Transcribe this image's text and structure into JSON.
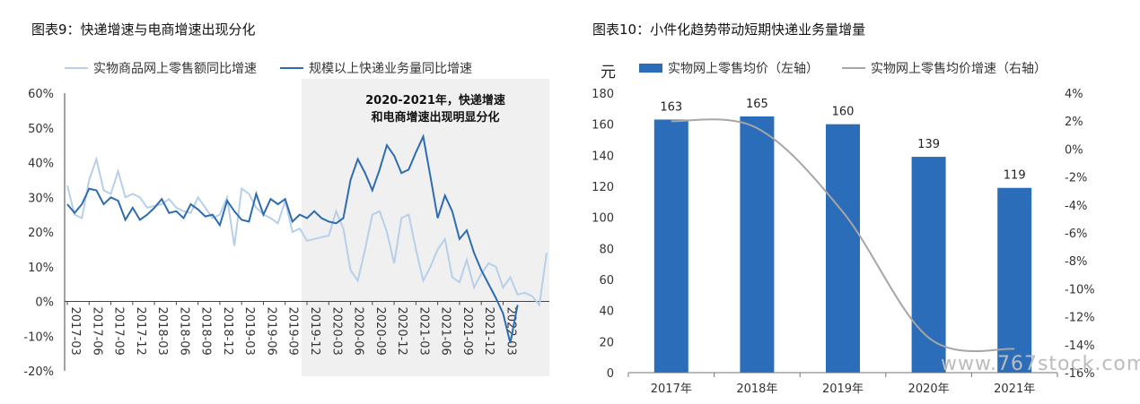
{
  "left_panel": {
    "title": "图表9：快递增速与电商增速出现分化",
    "legend": [
      "实物商品网上零售额同比增速",
      "规模以上快递业务量同比增速"
    ],
    "annotation_lines": [
      "2020-2021年，快递增速",
      "和电商增速出现明显分化"
    ],
    "colors": {
      "ecommerce": "#b7cfe9",
      "express": "#2e6cb0",
      "shade": "#f0f0f0"
    }
  },
  "right_panel": {
    "title": "图表10：小件化趋势带动短期快递业务量增量",
    "legend": [
      "实物网上零售均价（左轴）",
      "实物网上零售均价增速（右轴）"
    ],
    "unit": "元",
    "colors": {
      "bar": "#2b6db8",
      "line": "#a6a6a6"
    }
  },
  "watermark": "www.767stock.com",
  "chart_data": [
    {
      "type": "line",
      "x_tick_labels": [
        "2017-03",
        "2017-06",
        "2017-09",
        "2017-12",
        "2018-03",
        "2018-06",
        "2018-09",
        "2018-12",
        "2019-03",
        "2019-06",
        "2019-09",
        "2019-12",
        "2020-03",
        "2020-06",
        "2020-09",
        "2020-12",
        "2021-03",
        "2021-06",
        "2021-09",
        "2021-12",
        "2022-03"
      ],
      "y_tick_labels": [
        "60%",
        "50%",
        "40%",
        "30%",
        "20%",
        "10%",
        "0%",
        "-10%",
        "-20%"
      ],
      "ylim": [
        -20,
        60
      ],
      "shaded_x_range": [
        "2019-12",
        "2022-05"
      ],
      "series": [
        {
          "name": "实物商品网上零售额同比增速",
          "values": [
            33.4,
            25.0,
            24.0,
            35.0,
            41.0,
            32.0,
            31.0,
            37.5,
            30.0,
            31.0,
            30.0,
            27.0,
            27.5,
            28.0,
            29.5,
            27.0,
            26.0,
            25.5,
            30.0,
            27.0,
            24.0,
            25.0,
            30.0,
            16.0,
            32.5,
            31.0,
            27.0,
            25.0,
            24.0,
            22.5,
            29.0,
            20.0,
            21.0,
            17.5,
            18.0,
            18.5,
            19.0,
            26.0,
            21.0,
            9.0,
            6.0,
            15.0,
            25.0,
            26.0,
            20.0,
            11.0,
            24.0,
            25.0,
            15.0,
            6.0,
            10.0,
            15.0,
            18.0,
            7.0,
            5.5,
            12.0,
            4.0,
            8.0,
            11.0,
            10.0,
            4.0,
            7.0,
            2.0,
            2.5,
            1.5,
            -1.0,
            14.0
          ]
        },
        {
          "name": "规模以上快递业务量同比增速",
          "values": [
            28.0,
            25.5,
            28.0,
            32.5,
            32.0,
            28.0,
            30.0,
            29.0,
            23.5,
            27.0,
            23.5,
            25.0,
            27.0,
            29.5,
            25.5,
            26.0,
            24.0,
            28.0,
            26.5,
            24.5,
            25.0,
            22.0,
            29.0,
            26.0,
            23.5,
            23.0,
            31.0,
            25.0,
            29.5,
            28.0,
            29.5,
            23.0,
            25.0,
            24.0,
            26.0,
            24.0,
            23.0,
            22.5,
            24.0,
            35.0,
            41.0,
            37.0,
            32.0,
            38.0,
            45.0,
            42.0,
            37.0,
            38.0,
            43.0,
            47.5,
            36.0,
            24.0,
            30.5,
            26.0,
            18.0,
            20.5,
            14.0,
            9.0,
            5.0,
            1.0,
            -3.5,
            -12.0,
            -1.0
          ]
        }
      ]
    },
    {
      "type": "bar",
      "categories": [
        "2017年",
        "2018年",
        "2019年",
        "2020年",
        "2021年"
      ],
      "ylim": [
        0,
        180
      ],
      "y2lim": [
        -16,
        4
      ],
      "y_tick_labels": [
        "180",
        "160",
        "140",
        "120",
        "100",
        "80",
        "60",
        "40",
        "20",
        "0"
      ],
      "y2_tick_labels": [
        "4%",
        "2%",
        "0%",
        "-2%",
        "-4%",
        "-6%",
        "-8%",
        "-10%",
        "-12%",
        "-14%",
        "-16%"
      ],
      "series": [
        {
          "name": "实物网上零售均价（左轴）",
          "axis": "left",
          "values": [
            163,
            165,
            160,
            139,
            119
          ],
          "data_labels": [
            "163",
            "165",
            "160",
            "139",
            "119"
          ]
        },
        {
          "name": "实物网上零售均价增速（右轴）",
          "axis": "right",
          "type": "line",
          "values": [
            2.0,
            1.5,
            -4.5,
            -13.5,
            -14.3
          ]
        }
      ]
    }
  ]
}
